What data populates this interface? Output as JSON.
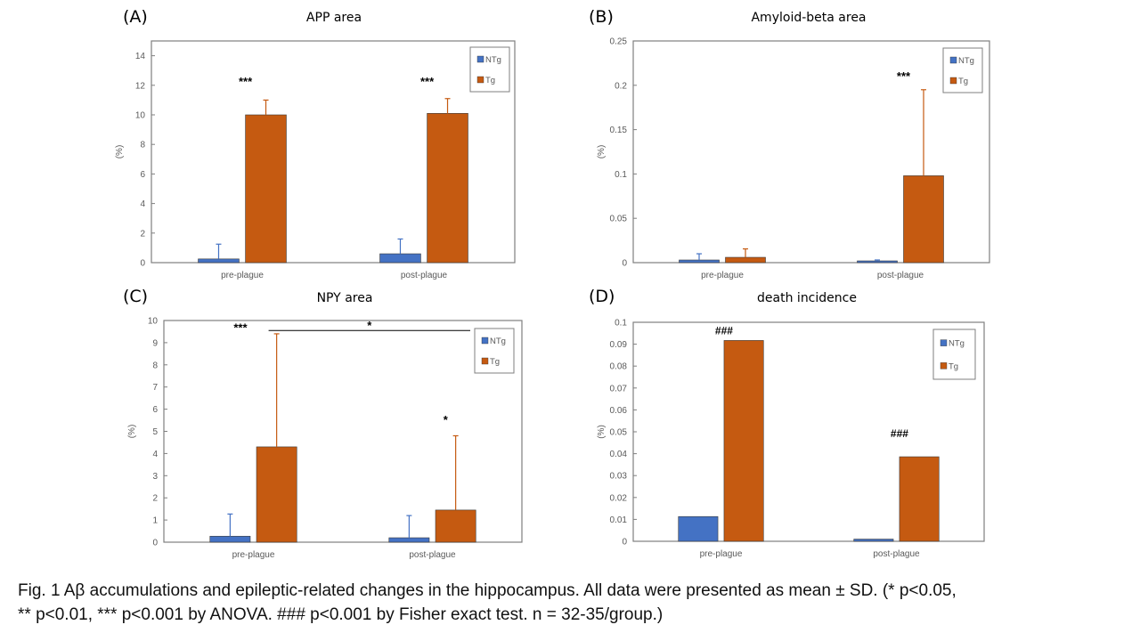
{
  "colors": {
    "ntg": "#4472C4",
    "tg": "#C55A11",
    "axis": "#7f7f7f",
    "tick_text": "#595959"
  },
  "chart_data": [
    {
      "type": "bar",
      "panel": "(A)",
      "title": "APP area",
      "ylabel": "(%)",
      "xlabel": "",
      "categories": [
        "pre-plague",
        "post-plague"
      ],
      "ylim": [
        0,
        15
      ],
      "yticks": [
        0,
        2,
        4,
        6,
        8,
        10,
        12,
        14
      ],
      "ytick_labels": [
        "0",
        "2",
        "4",
        "6",
        "8",
        "10",
        "12",
        "14"
      ],
      "series": [
        {
          "name": "NTg",
          "values": [
            0.25,
            0.6
          ],
          "errors": [
            1.0,
            1.0
          ]
        },
        {
          "name": "Tg",
          "values": [
            10.0,
            10.1
          ],
          "errors": [
            1.0,
            1.0
          ]
        }
      ],
      "annotations": [
        {
          "text": "***",
          "category": 0,
          "y": 12.0
        },
        {
          "text": "***",
          "category": 1,
          "y": 12.0
        }
      ],
      "legend": "top-right",
      "grid": false
    },
    {
      "type": "bar",
      "panel": "(B)",
      "title": "Amyloid-beta area",
      "ylabel": "(%)",
      "xlabel": "",
      "categories": [
        "pre-plague",
        "post-plague"
      ],
      "ylim": [
        0,
        0.25
      ],
      "yticks": [
        0,
        0.05,
        0.1,
        0.15,
        0.2,
        0.25
      ],
      "ytick_labels": [
        "0",
        "0.05",
        "0.1",
        "0.15",
        "0.2",
        "0.25"
      ],
      "series": [
        {
          "name": "NTg",
          "values": [
            0.003,
            0.002
          ],
          "errors": [
            0.007,
            0.001
          ]
        },
        {
          "name": "Tg",
          "values": [
            0.006,
            0.098
          ],
          "errors": [
            0.0095,
            0.097
          ]
        }
      ],
      "annotations": [
        {
          "text": "***",
          "category": 1,
          "y": 0.206
        }
      ],
      "legend": "top-right",
      "grid": false
    },
    {
      "type": "bar",
      "panel": "(C)",
      "title": "NPY area",
      "ylabel": "(%)",
      "xlabel": "",
      "categories": [
        "pre-plague",
        "post-plague"
      ],
      "ylim": [
        0,
        10
      ],
      "yticks": [
        0,
        1,
        2,
        3,
        4,
        5,
        6,
        7,
        8,
        9,
        10
      ],
      "ytick_labels": [
        "0",
        "1",
        "2",
        "3",
        "4",
        "5",
        "6",
        "7",
        "8",
        "9",
        "10"
      ],
      "series": [
        {
          "name": "NTg",
          "values": [
            0.27,
            0.2
          ],
          "errors": [
            1.0,
            1.0
          ]
        },
        {
          "name": "Tg",
          "values": [
            4.3,
            1.45
          ],
          "errors": [
            5.1,
            3.35
          ]
        }
      ],
      "annotations": [
        {
          "text": "***",
          "category": 0,
          "y": 9.5
        },
        {
          "text": "*",
          "category": 1,
          "y": 5.35
        }
      ],
      "bracket": {
        "text": "*",
        "y": 9.55,
        "from_category": 0,
        "to_category": 1
      },
      "legend": "top-right",
      "grid": false
    },
    {
      "type": "bar",
      "panel": "(D)",
      "title": "death incidence",
      "ylabel": "(%)",
      "xlabel": "",
      "categories": [
        "pre-plague",
        "post-plague"
      ],
      "ylim": [
        0,
        0.1
      ],
      "yticks": [
        0,
        0.01,
        0.02,
        0.03,
        0.04,
        0.05,
        0.06,
        0.07,
        0.08,
        0.09,
        0.1
      ],
      "ytick_labels": [
        "0",
        "0.01",
        "0.02",
        "0.03",
        "0.04",
        "0.05",
        "0.06",
        "0.07",
        "0.08",
        "0.09",
        "0.1"
      ],
      "series": [
        {
          "name": "NTg",
          "values": [
            0.0113,
            0.001
          ]
        },
        {
          "name": "Tg",
          "values": [
            0.0917,
            0.0386
          ]
        }
      ],
      "annotations": [
        {
          "text": "###",
          "category": 0,
          "y": 0.0945
        },
        {
          "text": "###",
          "category": 1,
          "y": 0.0475
        }
      ],
      "legend": "top-right",
      "grid": false
    }
  ],
  "caption": {
    "line1": "Fig. 1 Aβ accumulations and epileptic-related changes in the hippocampus. All data were presented as mean ± SD. (* p<0.05,",
    "line2": "** p<0.01, *** p<0.001 by ANOVA. ### p<0.001 by Fisher exact test. n = 32-35/group.)"
  }
}
